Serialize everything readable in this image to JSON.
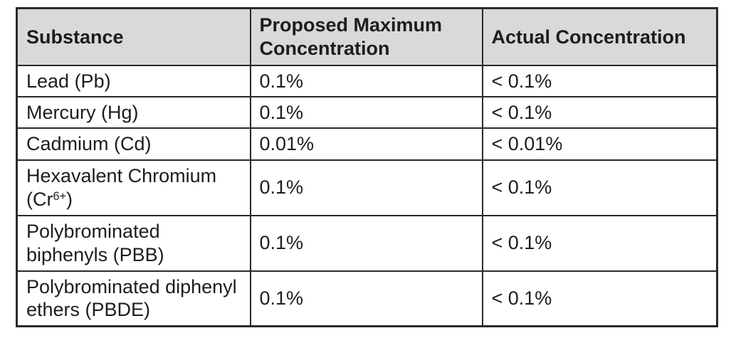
{
  "colors": {
    "header_bg": "#d9d9d9",
    "border": "#2a2a28",
    "text": "#1d1d1b",
    "page_bg": "#ffffff"
  },
  "table": {
    "columns": [
      {
        "id": "substance",
        "label_parts": [
          {
            "t": "Substance"
          }
        ]
      },
      {
        "id": "proposed-maximum-concentration",
        "label_parts": [
          {
            "t": "Proposed Maximum"
          },
          {
            "br": true
          },
          {
            "t": "Concentration"
          }
        ]
      },
      {
        "id": "actual-concentration",
        "label_parts": [
          {
            "t": "Actual Concentration"
          }
        ]
      }
    ],
    "rows": [
      {
        "substance": [
          {
            "t": "Lead (Pb)"
          }
        ],
        "proposed": [
          {
            "t": "0.1%"
          }
        ],
        "actual": [
          {
            "t": "< 0.1%"
          }
        ]
      },
      {
        "substance": [
          {
            "t": "Mercury (Hg)"
          }
        ],
        "proposed": [
          {
            "t": "0.1%"
          }
        ],
        "actual": [
          {
            "t": "< 0.1%"
          }
        ]
      },
      {
        "substance": [
          {
            "t": "Cadmium (Cd)"
          }
        ],
        "proposed": [
          {
            "t": "0.01%"
          }
        ],
        "actual": [
          {
            "t": "< 0.01%"
          }
        ]
      },
      {
        "substance": [
          {
            "t": "Hexavalent Chromium"
          },
          {
            "br": true
          },
          {
            "t": "(Cr"
          },
          {
            "t": "6+",
            "sup": true
          },
          {
            "t": ")"
          }
        ],
        "proposed": [
          {
            "t": "0.1%"
          }
        ],
        "actual": [
          {
            "t": "< 0.1%"
          }
        ]
      },
      {
        "substance": [
          {
            "t": "Polybrominated"
          },
          {
            "br": true
          },
          {
            "t": "biphenyls (PBB)"
          }
        ],
        "proposed": [
          {
            "t": "0.1%"
          }
        ],
        "actual": [
          {
            "t": "< 0.1%"
          }
        ]
      },
      {
        "substance": [
          {
            "t": "Polybrominated diphenyl"
          },
          {
            "br": true
          },
          {
            "t": "ethers (PBDE)"
          }
        ],
        "proposed": [
          {
            "t": "0.1%"
          }
        ],
        "actual": [
          {
            "t": "< 0.1%"
          }
        ]
      }
    ]
  }
}
